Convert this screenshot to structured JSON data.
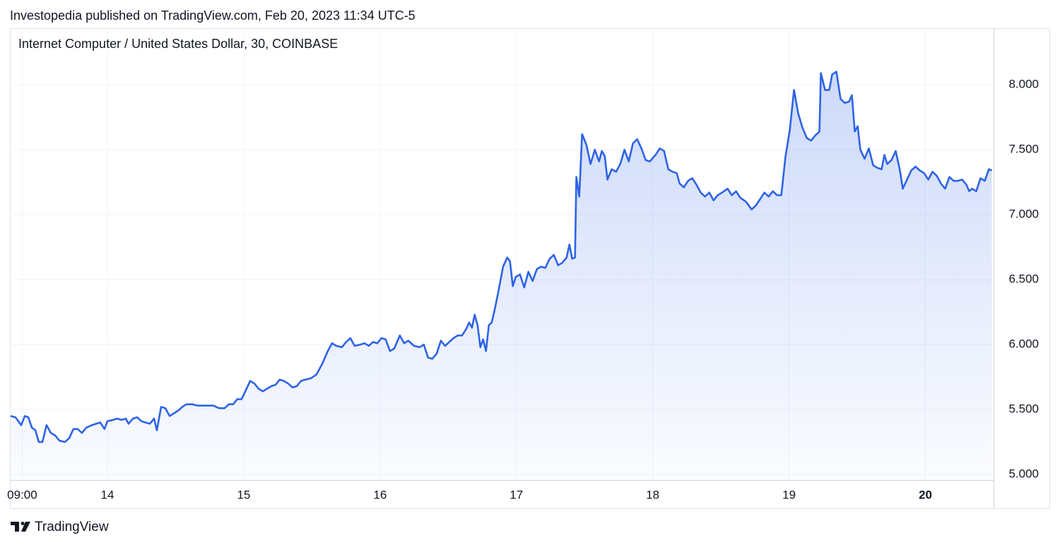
{
  "chart_data": {
    "type": "area",
    "attribution": "Investopedia published on TradingView.com, Feb 20, 2023 11:34 UTC-5",
    "title": "Internet Computer / United States Dollar, 30, COINBASE",
    "brand": "TradingView",
    "color": "#2e63e6",
    "grid": true,
    "xlim": [
      13.29,
      20.5
    ],
    "ylim": [
      4.957,
      8.435
    ],
    "xticks": [
      {
        "value": 13.375,
        "label": "09:00"
      },
      14,
      15,
      16,
      17,
      18,
      19,
      20
    ],
    "yticks": [
      {
        "value": 5,
        "label": "5.000"
      },
      {
        "value": 5.5,
        "label": "5.500"
      },
      {
        "value": 6,
        "label": "6.000"
      },
      {
        "value": 6.5,
        "label": "6.500"
      },
      {
        "value": 7,
        "label": "7.000"
      },
      {
        "value": 7.5,
        "label": "7.500"
      },
      {
        "value": 8,
        "label": "8.000"
      }
    ],
    "x": [
      13.29,
      13.326,
      13.368,
      13.394,
      13.42,
      13.446,
      13.472,
      13.497,
      13.523,
      13.554,
      13.585,
      13.617,
      13.648,
      13.689,
      13.72,
      13.751,
      13.782,
      13.813,
      13.845,
      13.886,
      13.917,
      13.948,
      13.979,
      14.0,
      14.041,
      14.073,
      14.104,
      14.135,
      14.155,
      14.187,
      14.218,
      14.249,
      14.28,
      14.311,
      14.342,
      14.363,
      14.394,
      14.425,
      14.456,
      14.487,
      14.518,
      14.549,
      14.58,
      14.622,
      14.663,
      14.705,
      14.746,
      14.777,
      14.819,
      14.86,
      14.891,
      14.922,
      14.953,
      14.984,
      15.016,
      15.047,
      15.078,
      15.109,
      15.14,
      15.171,
      15.202,
      15.233,
      15.264,
      15.295,
      15.326,
      15.358,
      15.389,
      15.42,
      15.451,
      15.492,
      15.534,
      15.575,
      15.617,
      15.648,
      15.679,
      15.72,
      15.751,
      15.782,
      15.813,
      15.855,
      15.886,
      15.917,
      15.948,
      15.979,
      16.01,
      16.041,
      16.073,
      16.104,
      16.145,
      16.176,
      16.207,
      16.249,
      16.29,
      16.321,
      16.352,
      16.383,
      16.415,
      16.446,
      16.477,
      16.508,
      16.539,
      16.57,
      16.601,
      16.632,
      16.653,
      16.674,
      16.694,
      16.715,
      16.736,
      16.756,
      16.777,
      16.798,
      16.819,
      16.839,
      16.87,
      16.902,
      16.933,
      16.953,
      16.974,
      16.995,
      17.026,
      17.057,
      17.088,
      17.119,
      17.15,
      17.181,
      17.212,
      17.244,
      17.275,
      17.306,
      17.337,
      17.368,
      17.389,
      17.409,
      17.43,
      17.44,
      17.461,
      17.482,
      17.513,
      17.544,
      17.575,
      17.606,
      17.627,
      17.648,
      17.668,
      17.699,
      17.731,
      17.762,
      17.793,
      17.824,
      17.855,
      17.886,
      17.917,
      17.948,
      17.979,
      18.021,
      18.052,
      18.083,
      18.114,
      18.145,
      18.176,
      18.197,
      18.228,
      18.259,
      18.29,
      18.321,
      18.352,
      18.383,
      18.415,
      18.446,
      18.477,
      18.508,
      18.549,
      18.58,
      18.611,
      18.642,
      18.684,
      18.725,
      18.756,
      18.788,
      18.819,
      18.85,
      18.881,
      18.912,
      18.943,
      18.974,
      19.005,
      19.036,
      19.067,
      19.098,
      19.13,
      19.161,
      19.192,
      19.223,
      19.233,
      19.264,
      19.295,
      19.316,
      19.347,
      19.378,
      19.409,
      19.44,
      19.461,
      19.482,
      19.503,
      19.523,
      19.554,
      19.585,
      19.617,
      19.648,
      19.679,
      19.699,
      19.72,
      19.751,
      19.782,
      19.813,
      19.834,
      19.865,
      19.896,
      19.927,
      19.959,
      19.99,
      20.021,
      20.052,
      20.083,
      20.114,
      20.145,
      20.176,
      20.207,
      20.238,
      20.269,
      20.301,
      20.321,
      20.342,
      20.373,
      20.404,
      20.435,
      20.466,
      20.487
    ],
    "values": [
      5.45,
      5.44,
      5.38,
      5.45,
      5.44,
      5.36,
      5.34,
      5.25,
      5.25,
      5.38,
      5.32,
      5.3,
      5.26,
      5.25,
      5.28,
      5.35,
      5.35,
      5.32,
      5.36,
      5.38,
      5.39,
      5.4,
      5.35,
      5.41,
      5.42,
      5.43,
      5.42,
      5.43,
      5.39,
      5.43,
      5.44,
      5.41,
      5.4,
      5.39,
      5.43,
      5.34,
      5.52,
      5.51,
      5.45,
      5.47,
      5.49,
      5.52,
      5.54,
      5.54,
      5.53,
      5.53,
      5.53,
      5.53,
      5.51,
      5.51,
      5.54,
      5.54,
      5.58,
      5.58,
      5.65,
      5.72,
      5.7,
      5.66,
      5.64,
      5.66,
      5.68,
      5.69,
      5.73,
      5.72,
      5.7,
      5.67,
      5.68,
      5.72,
      5.73,
      5.74,
      5.77,
      5.85,
      5.95,
      6.01,
      5.99,
      5.98,
      6.02,
      6.05,
      5.99,
      6.0,
      6.01,
      5.99,
      6.02,
      6.01,
      6.05,
      6.04,
      5.95,
      5.97,
      6.07,
      6.01,
      6.03,
      5.99,
      5.98,
      6.0,
      5.9,
      5.89,
      5.93,
      6.03,
      5.99,
      6.02,
      6.05,
      6.07,
      6.07,
      6.12,
      6.17,
      6.13,
      6.23,
      6.15,
      5.98,
      6.04,
      5.95,
      6.15,
      6.17,
      6.26,
      6.42,
      6.6,
      6.67,
      6.64,
      6.45,
      6.52,
      6.54,
      6.44,
      6.56,
      6.49,
      6.58,
      6.6,
      6.59,
      6.66,
      6.69,
      6.61,
      6.63,
      6.67,
      6.77,
      6.66,
      6.67,
      7.29,
      7.14,
      7.62,
      7.54,
      7.39,
      7.5,
      7.41,
      7.49,
      7.45,
      7.27,
      7.35,
      7.33,
      7.39,
      7.5,
      7.41,
      7.55,
      7.58,
      7.51,
      7.42,
      7.41,
      7.46,
      7.51,
      7.49,
      7.35,
      7.33,
      7.32,
      7.24,
      7.21,
      7.26,
      7.28,
      7.23,
      7.17,
      7.14,
      7.17,
      7.11,
      7.15,
      7.17,
      7.2,
      7.15,
      7.18,
      7.13,
      7.1,
      7.04,
      7.07,
      7.12,
      7.17,
      7.14,
      7.18,
      7.15,
      7.15,
      7.45,
      7.65,
      7.96,
      7.78,
      7.67,
      7.59,
      7.57,
      7.61,
      7.64,
      8.09,
      7.96,
      7.96,
      8.08,
      8.1,
      7.89,
      7.86,
      7.87,
      7.92,
      7.64,
      7.68,
      7.5,
      7.43,
      7.51,
      7.38,
      7.36,
      7.35,
      7.46,
      7.39,
      7.42,
      7.49,
      7.34,
      7.2,
      7.27,
      7.34,
      7.37,
      7.34,
      7.32,
      7.27,
      7.33,
      7.3,
      7.24,
      7.2,
      7.29,
      7.26,
      7.26,
      7.27,
      7.23,
      7.18,
      7.2,
      7.18,
      7.28,
      7.26,
      7.35,
      7.34
    ]
  }
}
